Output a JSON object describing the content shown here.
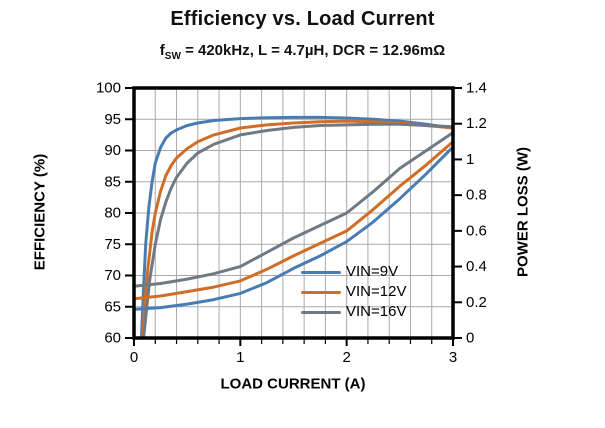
{
  "header": {
    "title": "Efficiency vs. Load Current",
    "subtitle_f": "f",
    "subtitle_sub": "SW",
    "subtitle_rest": " = 420kHz, L = 4.7µH, DCR = 12.96mΩ"
  },
  "legend": {
    "position": "inside-bottom-right",
    "items": [
      {
        "label": "VIN=9V",
        "color": "#4a7cb4"
      },
      {
        "label": "VIN=12V",
        "color": "#d06e27"
      },
      {
        "label": "VIN=16V",
        "color": "#707a84"
      }
    ]
  },
  "chart_data": {
    "type": "line",
    "title": "Efficiency vs. Load Current",
    "subtitle": "fSW = 420kHz, L = 4.7µH, DCR = 12.96mΩ",
    "grid": {
      "on": true,
      "x_step": 0.2,
      "y_left_step": 5,
      "color": "#a9a9a9"
    },
    "x_axis": {
      "label": "LOAD CURRENT  (A)",
      "min": 0,
      "max": 3,
      "major_ticks": [
        [
          0,
          "0"
        ],
        [
          1,
          "1"
        ],
        [
          2,
          "2"
        ],
        [
          3,
          "3"
        ]
      ],
      "minor_tick_step": 0.2
    },
    "y_left": {
      "label": "EFFICIENCY  (%)",
      "min": 60,
      "max": 100,
      "ticks": [
        [
          100,
          "100"
        ],
        [
          95,
          "95"
        ],
        [
          90,
          "90"
        ],
        [
          85,
          "85"
        ],
        [
          80,
          "80"
        ],
        [
          75,
          "75"
        ],
        [
          70,
          "70"
        ],
        [
          65,
          "65"
        ],
        [
          60,
          "60"
        ]
      ]
    },
    "y_right": {
      "label": "POWER LOSS (W)",
      "min": 0,
      "max": 1.4,
      "ticks": [
        [
          1.4,
          "1.4"
        ],
        [
          1.2,
          "1.2"
        ],
        [
          1,
          "1"
        ],
        [
          0.8,
          "0.8"
        ],
        [
          0.6,
          "0.6"
        ],
        [
          0.4,
          "0.4"
        ],
        [
          0.2,
          "0.2"
        ],
        [
          0,
          "0"
        ]
      ]
    },
    "series": [
      {
        "name": "VIN=9V",
        "quantity": "efficiency",
        "axis": "left",
        "color": "#4a7cb4",
        "points": [
          [
            0.07,
            60
          ],
          [
            0.09,
            68
          ],
          [
            0.11,
            75
          ],
          [
            0.14,
            81
          ],
          [
            0.17,
            85
          ],
          [
            0.2,
            88
          ],
          [
            0.25,
            90.5
          ],
          [
            0.3,
            92
          ],
          [
            0.35,
            92.8
          ],
          [
            0.4,
            93.3
          ],
          [
            0.5,
            94
          ],
          [
            0.6,
            94.4
          ],
          [
            0.75,
            94.8
          ],
          [
            1,
            95.1
          ],
          [
            1.25,
            95.25
          ],
          [
            1.5,
            95.3
          ],
          [
            1.75,
            95.3
          ],
          [
            2,
            95.2
          ],
          [
            2.25,
            95
          ],
          [
            2.5,
            94.7
          ],
          [
            2.75,
            94.2
          ],
          [
            3,
            93.6
          ]
        ]
      },
      {
        "name": "VIN=12V",
        "quantity": "efficiency",
        "axis": "left",
        "color": "#d06e27",
        "points": [
          [
            0.08,
            60
          ],
          [
            0.1,
            65
          ],
          [
            0.13,
            71
          ],
          [
            0.17,
            77
          ],
          [
            0.2,
            80
          ],
          [
            0.25,
            83.5
          ],
          [
            0.3,
            86
          ],
          [
            0.35,
            87.6
          ],
          [
            0.4,
            88.8
          ],
          [
            0.5,
            90.3
          ],
          [
            0.6,
            91.4
          ],
          [
            0.75,
            92.5
          ],
          [
            1,
            93.6
          ],
          [
            1.25,
            94.1
          ],
          [
            1.5,
            94.4
          ],
          [
            1.75,
            94.6
          ],
          [
            2,
            94.7
          ],
          [
            2.25,
            94.6
          ],
          [
            2.5,
            94.4
          ],
          [
            2.75,
            94
          ],
          [
            3,
            93.6
          ]
        ]
      },
      {
        "name": "VIN=16V",
        "quantity": "efficiency",
        "axis": "left",
        "color": "#707a84",
        "points": [
          [
            0.09,
            60
          ],
          [
            0.12,
            65
          ],
          [
            0.15,
            69.5
          ],
          [
            0.2,
            75
          ],
          [
            0.25,
            79
          ],
          [
            0.3,
            81.8
          ],
          [
            0.35,
            84
          ],
          [
            0.4,
            85.7
          ],
          [
            0.5,
            88
          ],
          [
            0.6,
            89.6
          ],
          [
            0.75,
            91
          ],
          [
            1,
            92.5
          ],
          [
            1.25,
            93.2
          ],
          [
            1.5,
            93.7
          ],
          [
            1.75,
            94
          ],
          [
            2,
            94.1
          ],
          [
            2.25,
            94.2
          ],
          [
            2.5,
            94.2
          ],
          [
            2.75,
            94
          ],
          [
            3,
            93.8
          ]
        ]
      },
      {
        "name": "VIN=9V",
        "quantity": "power_loss",
        "axis": "right",
        "color": "#4a7cb4",
        "points": [
          [
            0,
            0.16
          ],
          [
            0.25,
            0.17
          ],
          [
            0.5,
            0.19
          ],
          [
            0.75,
            0.215
          ],
          [
            1,
            0.25
          ],
          [
            1.25,
            0.31
          ],
          [
            1.5,
            0.39
          ],
          [
            1.75,
            0.46
          ],
          [
            2,
            0.54
          ],
          [
            2.25,
            0.65
          ],
          [
            2.5,
            0.78
          ],
          [
            2.75,
            0.92
          ],
          [
            3,
            1.07
          ]
        ]
      },
      {
        "name": "VIN=12V",
        "quantity": "power_loss",
        "axis": "right",
        "color": "#d06e27",
        "points": [
          [
            0,
            0.22
          ],
          [
            0.25,
            0.235
          ],
          [
            0.5,
            0.26
          ],
          [
            0.75,
            0.285
          ],
          [
            1,
            0.32
          ],
          [
            1.25,
            0.385
          ],
          [
            1.5,
            0.46
          ],
          [
            1.75,
            0.53
          ],
          [
            2,
            0.6
          ],
          [
            2.25,
            0.72
          ],
          [
            2.5,
            0.85
          ],
          [
            2.75,
            0.97
          ],
          [
            3,
            1.1
          ]
        ]
      },
      {
        "name": "VIN=16V",
        "quantity": "power_loss",
        "axis": "right",
        "color": "#707a84",
        "points": [
          [
            0,
            0.29
          ],
          [
            0.25,
            0.305
          ],
          [
            0.5,
            0.33
          ],
          [
            0.75,
            0.36
          ],
          [
            1,
            0.4
          ],
          [
            1.25,
            0.48
          ],
          [
            1.5,
            0.56
          ],
          [
            1.75,
            0.63
          ],
          [
            2,
            0.7
          ],
          [
            2.25,
            0.82
          ],
          [
            2.5,
            0.95
          ],
          [
            2.75,
            1.05
          ],
          [
            3,
            1.15
          ]
        ]
      }
    ],
    "style": {
      "plot_border_color": "#000000",
      "background": "#ffffff",
      "line_width": 3
    }
  }
}
